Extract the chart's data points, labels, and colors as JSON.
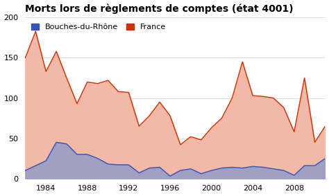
{
  "title": "Morts lors de règlements de comptes (état 4001)",
  "years": [
    1982,
    1983,
    1984,
    1985,
    1986,
    1987,
    1988,
    1989,
    1990,
    1991,
    1992,
    1993,
    1994,
    1995,
    1996,
    1997,
    1998,
    1999,
    2000,
    2001,
    2002,
    2003,
    2004,
    2005,
    2006,
    2007,
    2008,
    2009,
    2010,
    2011
  ],
  "france": [
    150,
    183,
    133,
    158,
    125,
    93,
    120,
    118,
    122,
    108,
    107,
    65,
    78,
    95,
    78,
    42,
    52,
    48,
    63,
    75,
    100,
    145,
    103,
    102,
    100,
    88,
    58,
    125,
    45,
    65
  ],
  "bouches": [
    10,
    16,
    22,
    45,
    43,
    30,
    30,
    25,
    18,
    17,
    17,
    7,
    13,
    14,
    3,
    10,
    12,
    6,
    10,
    13,
    14,
    13,
    15,
    14,
    12,
    10,
    4,
    16,
    16,
    25
  ],
  "france_color": "#cc3300",
  "france_fill": "#f2b8a8",
  "bouches_color": "#3355bb",
  "bouches_fill": "#8899cc",
  "bg_color": "#ffffff",
  "plot_bg": "#ffffff",
  "grid_color": "#dddddd",
  "ylim": [
    0,
    200
  ],
  "yticks": [
    0,
    50,
    100,
    150,
    200
  ],
  "xticks": [
    1984,
    1988,
    1992,
    1996,
    2000,
    2004,
    2008
  ],
  "legend_bouches": "Bouches-du-Rhône",
  "legend_france": "France",
  "title_fontsize": 10,
  "tick_fontsize": 8,
  "legend_fontsize": 8
}
